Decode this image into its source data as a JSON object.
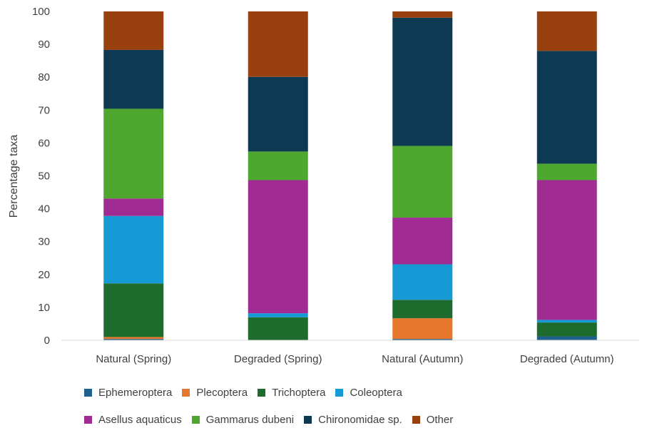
{
  "chart_data": {
    "type": "bar",
    "stacked": true,
    "title": "",
    "xlabel": "",
    "ylabel": "Percentage taxa",
    "ylim": [
      0,
      100
    ],
    "yticks": [
      0,
      10,
      20,
      30,
      40,
      50,
      60,
      70,
      80,
      90,
      100
    ],
    "grid": false,
    "legend_position": "bottom",
    "categories": [
      "Natural (Spring)",
      "Degraded (Spring)",
      "Natural (Autumn)",
      "Degraded (Autumn)"
    ],
    "series": [
      {
        "name": "Ephemeroptera",
        "color": "#1f5f8b",
        "values": [
          0.4,
          0.0,
          0.4,
          1.2
        ]
      },
      {
        "name": "Plecoptera",
        "color": "#e8772e",
        "values": [
          0.6,
          0.0,
          6.3,
          0.0
        ]
      },
      {
        "name": "Trichoptera",
        "color": "#1e6b2e",
        "values": [
          16.3,
          7.0,
          5.6,
          4.2
        ]
      },
      {
        "name": "Coleoptera",
        "color": "#169ad5",
        "values": [
          20.5,
          1.2,
          10.8,
          0.8
        ]
      },
      {
        "name": "Asellus aquaticus",
        "color": "#a02b93",
        "values": [
          5.3,
          40.5,
          14.2,
          42.5
        ]
      },
      {
        "name": "Gammarus dubeni",
        "color": "#4ea72e",
        "values": [
          27.3,
          8.7,
          21.8,
          5.0
        ]
      },
      {
        "name": "Chironomidae sp.",
        "color": "#0d3a52",
        "values": [
          17.9,
          22.7,
          39.0,
          34.3
        ]
      },
      {
        "name": "Other",
        "color": "#99400f",
        "values": [
          11.7,
          19.9,
          1.9,
          12.0
        ]
      }
    ]
  },
  "legend_rows": [
    [
      "Ephemeroptera",
      "Plecoptera",
      "Trichoptera",
      "Coleoptera"
    ],
    [
      "Asellus aquaticus",
      "Gammarus dubeni",
      "Chironomidae sp.",
      "Other"
    ]
  ]
}
